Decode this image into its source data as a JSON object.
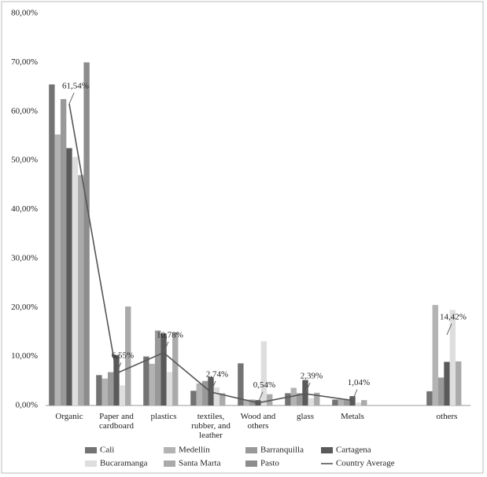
{
  "chart_data": {
    "type": "bar",
    "categories": [
      "Organic",
      "Paper and cardboard",
      "plastics",
      "textiles, rubber, and leather",
      "Wood and others",
      "glass",
      "Metals",
      null,
      "others"
    ],
    "series": [
      {
        "name": "Cali",
        "color": "#737373",
        "values": [
          65.5,
          6.2,
          10.0,
          3.0,
          8.6,
          2.5,
          1.2,
          null,
          2.9
        ]
      },
      {
        "name": "Medellín",
        "color": "#b3b3b3",
        "values": [
          55.3,
          5.5,
          8.5,
          4.5,
          1.2,
          3.6,
          1.3,
          null,
          20.5
        ]
      },
      {
        "name": "Barranquilla",
        "color": "#999999",
        "values": [
          62.5,
          6.8,
          15.3,
          5.0,
          1.2,
          2.5,
          1.3,
          null,
          5.7
        ]
      },
      {
        "name": "Cartagena",
        "color": "#5a5a5a",
        "values": [
          52.5,
          10.3,
          14.7,
          5.8,
          1.1,
          5.2,
          1.9,
          null,
          8.9
        ]
      },
      {
        "name": "Bucaramanga",
        "color": "#dedede",
        "values": [
          50.7,
          4.1,
          6.8,
          3.7,
          13.1,
          1.5,
          0.6,
          null,
          19.5
        ]
      },
      {
        "name": "Santa Marta",
        "color": "#aaaaaa",
        "values": [
          47.0,
          20.2,
          14.9,
          2.5,
          2.3,
          2.6,
          1.1,
          null,
          9.0
        ]
      },
      {
        "name": "Pasto",
        "color": "#8c8c8c",
        "values": [
          70.0,
          null,
          null,
          null,
          null,
          null,
          null,
          null,
          null
        ]
      }
    ],
    "line": {
      "type": "line",
      "name": "Country Average",
      "color": "#555555",
      "values": [
        61.54,
        6.55,
        10.78,
        2.74,
        0.54,
        2.39,
        1.04,
        null,
        14.42
      ],
      "value_labels": [
        "61,54%",
        "6,55%",
        "10,78%",
        "2,74%",
        "0,54%",
        "2,39%",
        "1,04%",
        null,
        "14,42%"
      ]
    },
    "ylim": [
      0,
      80
    ],
    "yticks": [
      {
        "value": 0,
        "label": "0,00%"
      },
      {
        "value": 10,
        "label": "10,00%"
      },
      {
        "value": 20,
        "label": "20,00%"
      },
      {
        "value": 30,
        "label": "30,00%"
      },
      {
        "value": 40,
        "label": "40,00%"
      },
      {
        "value": 50,
        "label": "50,00%"
      },
      {
        "value": 60,
        "label": "60,00%"
      },
      {
        "value": 70,
        "label": "70,00%"
      },
      {
        "value": 80,
        "label": "80,00%"
      }
    ],
    "grid": false,
    "legend": "bottom"
  }
}
